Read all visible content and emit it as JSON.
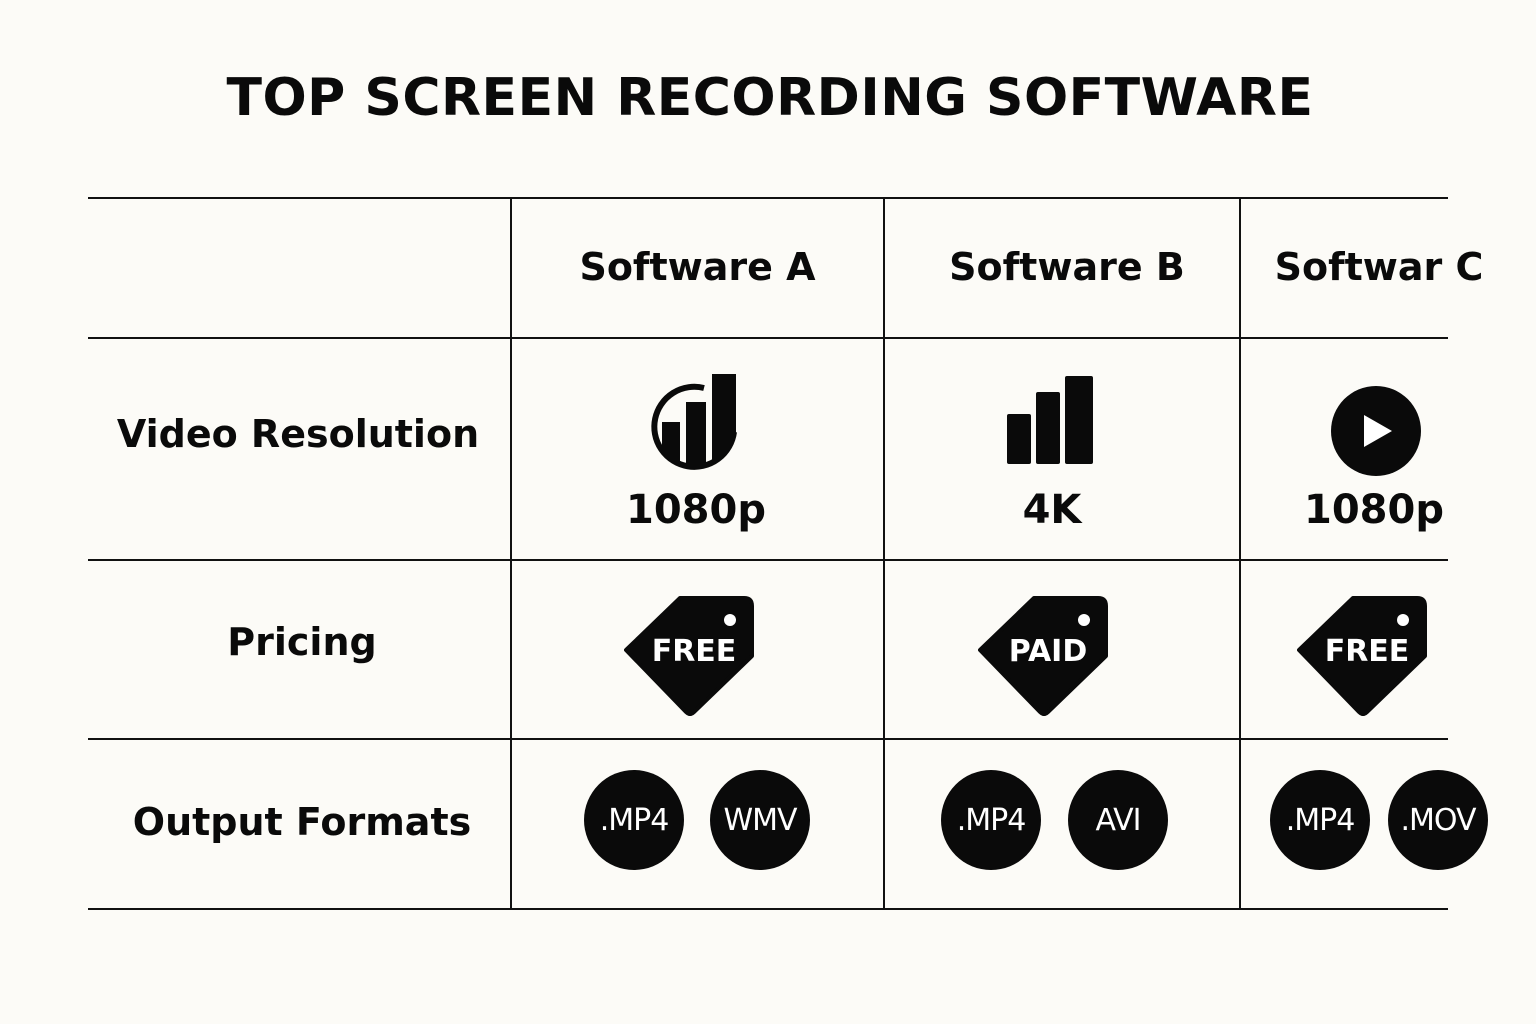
{
  "title": "TOP SCREEN RECORDING SOFTWARE",
  "columns": [
    "Software A",
    "Software B",
    "Softwar C"
  ],
  "rows": {
    "resolution": {
      "label": "Video Resolution",
      "values": [
        "1080p",
        "4K",
        "1080p"
      ],
      "icons": [
        "chart-circle-icon",
        "bar-chart-icon",
        "play-circle-icon"
      ]
    },
    "pricing": {
      "label": "Pricing",
      "values": [
        "FREE",
        "PAID",
        "FREE"
      ]
    },
    "formats": {
      "label": "Output Formats",
      "values": [
        [
          ".MP4",
          "WMV"
        ],
        [
          ".MP4",
          "AVI"
        ],
        [
          ".MP4",
          ".MOV"
        ]
      ]
    }
  }
}
